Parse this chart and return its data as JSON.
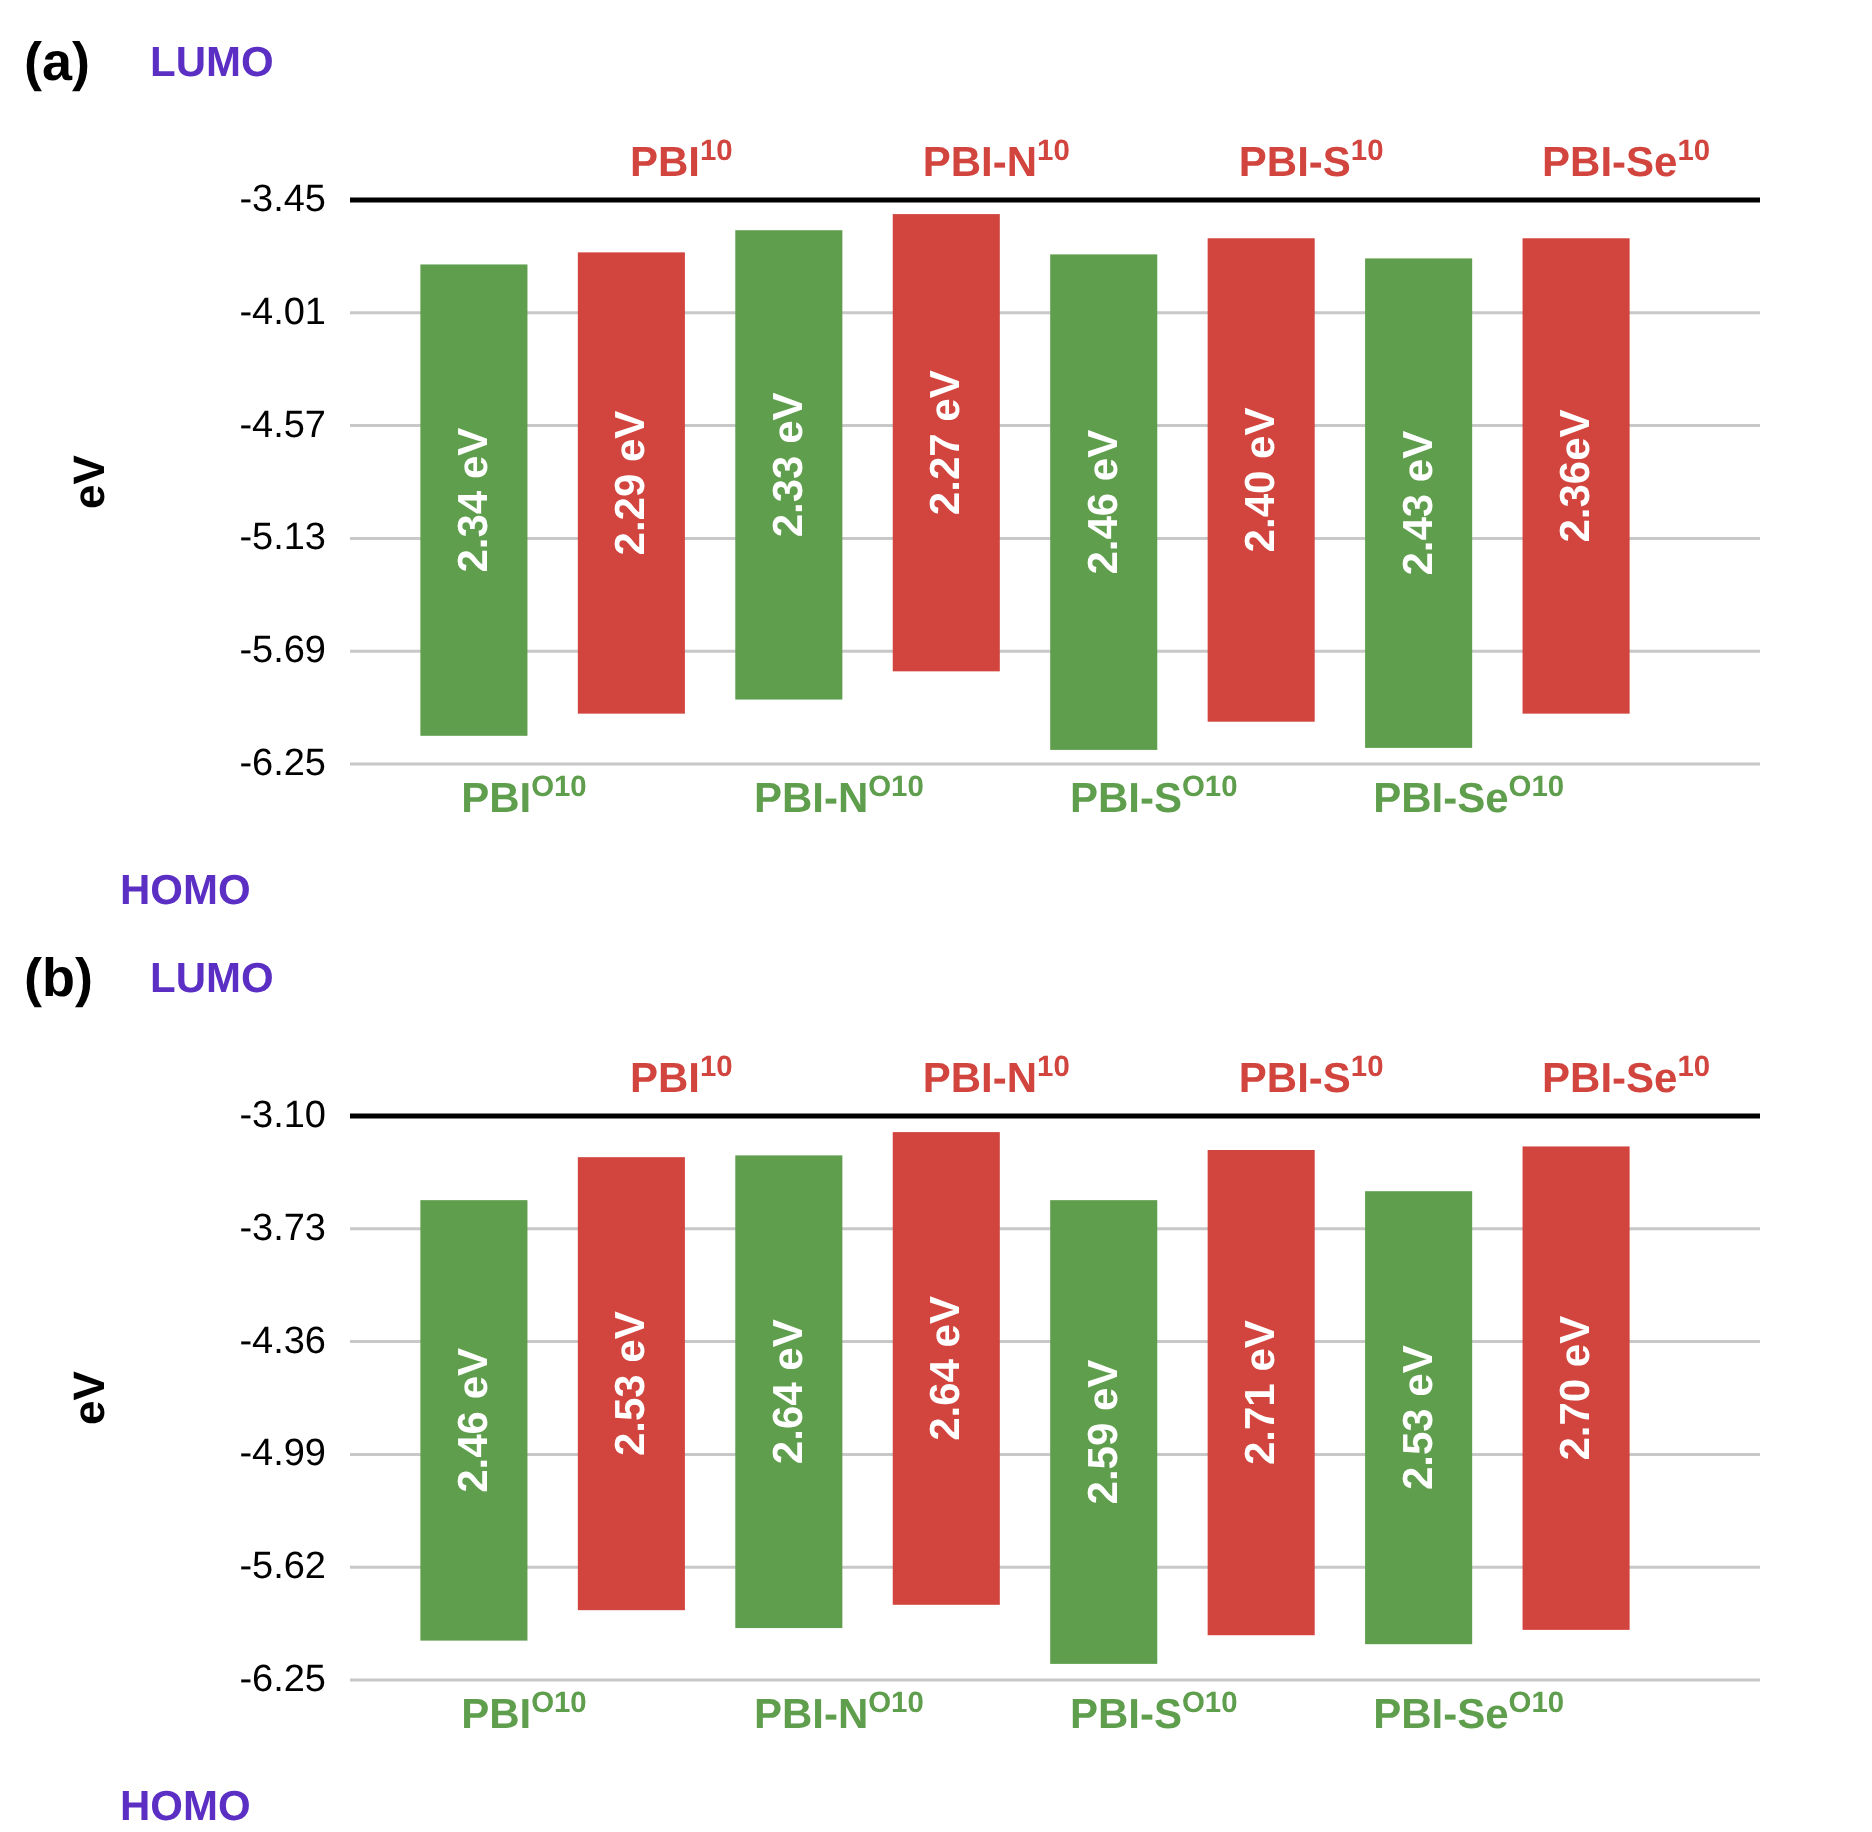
{
  "chart_data": [
    {
      "type": "bar",
      "title": "(a)",
      "ylabel": "eV",
      "annotations": [
        "LUMO",
        "HOMO"
      ],
      "categories": [
        "PBI$^{O10}$",
        "PBI$^{10}$",
        "PBI-N$^{O10}$",
        "PBI-N$^{10}$",
        "PBI-S$^{O10}$",
        "PBI-S$^{10}$",
        "PBI-Se$^{O10}$",
        "PBI-Se$^{10}$"
      ],
      "values": [
        2.34,
        2.29,
        2.33,
        2.27,
        2.46,
        2.4,
        2.43,
        2.36
      ],
      "base": [
        -6.11,
        -6.0,
        -5.93,
        -5.79,
        -6.18,
        -6.04,
        -6.17,
        -6.0
      ],
      "colors": [
        "#5e9e4c",
        "#d2443e",
        "#5e9e4c",
        "#d2443e",
        "#5e9e4c",
        "#d2443e",
        "#5e9e4c",
        "#d2443e"
      ],
      "value_labels": [
        "2.34 eV",
        "2.29 eV",
        "2.33 eV",
        "2.27 eV",
        "2.46 eV",
        "2.40 eV",
        "2.43 eV",
        "2.36eV"
      ],
      "ylim": [
        -6.25,
        -3.45
      ],
      "yticks": [
        -6.25,
        -5.69,
        -5.13,
        -4.57,
        -4.01,
        -3.45
      ],
      "grid": "y"
    },
    {
      "type": "bar",
      "title": "(b)",
      "ylabel": "eV",
      "annotations": [
        "LUMO",
        "HOMO"
      ],
      "categories": [
        "PBI$^{O10}$",
        "PBI$^{10}$",
        "PBI-N$^{O10}$",
        "PBI-N$^{10}$",
        "PBI-S$^{O10}$",
        "PBI-S$^{10}$",
        "PBI-Se$^{O10}$",
        "PBI-Se$^{10}$"
      ],
      "values": [
        2.46,
        2.53,
        2.64,
        2.64,
        2.59,
        2.71,
        2.53,
        2.7
      ],
      "base": [
        -6.03,
        -5.86,
        -5.96,
        -5.83,
        -6.16,
        -6.0,
        -6.05,
        -5.97
      ],
      "colors": [
        "#5e9e4c",
        "#d2443e",
        "#5e9e4c",
        "#d2443e",
        "#5e9e4c",
        "#d2443e",
        "#5e9e4c",
        "#d2443e"
      ],
      "value_labels": [
        "2.46 eV",
        "2.53 eV",
        "2.64 eV",
        "2.64 eV",
        "2.59 eV",
        "2.71 eV",
        "2.53 eV",
        "2.70 eV"
      ],
      "ylim": [
        -6.25,
        -3.1
      ],
      "yticks": [
        -6.25,
        -5.62,
        -4.99,
        -4.36,
        -3.73,
        {
          "value": -3.1,
          "label": "-3.10"
        }
      ],
      "grid": "y"
    }
  ]
}
